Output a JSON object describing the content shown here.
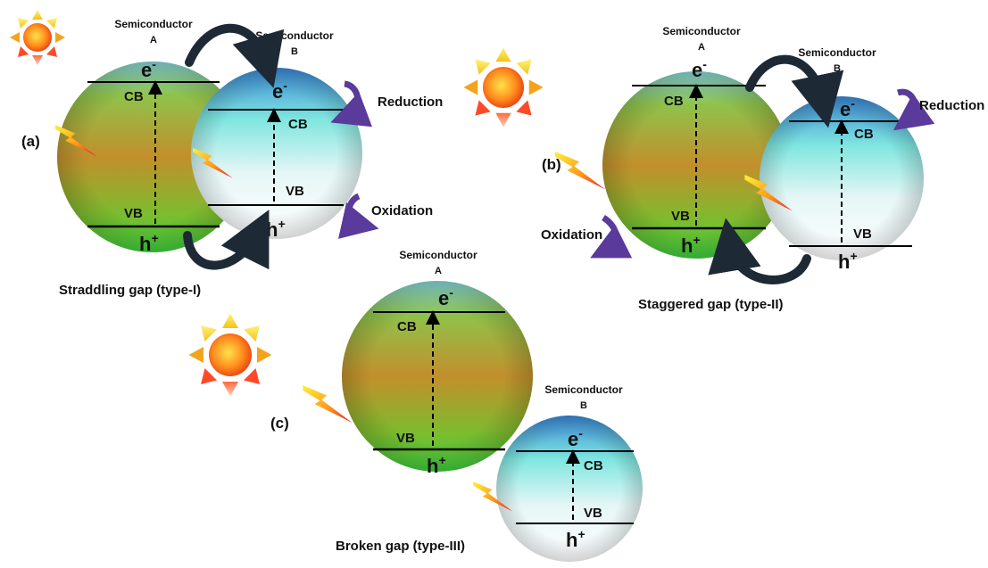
{
  "panels": {
    "a": {
      "label": "(a)",
      "caption": "Straddling gap (type-I)",
      "semA": {
        "line1": "Semiconductor",
        "line2": "A"
      },
      "semB": {
        "line1": "Semiconductor",
        "line2": "B"
      },
      "A": {
        "e": "e",
        "e_sup": "-",
        "cb": "CB",
        "vb": "VB",
        "h": "h",
        "h_sup": "+"
      },
      "B": {
        "e": "e",
        "e_sup": "-",
        "cb": "CB",
        "vb": "VB",
        "h": "h",
        "h_sup": "+"
      },
      "reduction": "Reduction",
      "oxidation": "Oxidation"
    },
    "b": {
      "label": "(b)",
      "caption": "Staggered gap (type-II)",
      "semA": {
        "line1": "Semiconductor",
        "line2": "A"
      },
      "semB": {
        "line1": "Semiconductor",
        "line2": "B"
      },
      "A": {
        "e": "e",
        "e_sup": "-",
        "cb": "CB",
        "vb": "VB",
        "h": "h",
        "h_sup": "+"
      },
      "B": {
        "e": "e",
        "e_sup": "-",
        "cb": "CB",
        "vb": "VB",
        "h": "h",
        "h_sup": "+"
      },
      "reduction": "Reduction",
      "oxidation": "Oxidation"
    },
    "c": {
      "label": "(c)",
      "caption": "Broken gap (type-III)",
      "semA": {
        "line1": "Semiconductor",
        "line2": "A"
      },
      "semB": {
        "line1": "Semiconductor",
        "line2": "B"
      },
      "A": {
        "e": "e",
        "e_sup": "-",
        "cb": "CB",
        "vb": "VB",
        "h": "h",
        "h_sup": "+"
      },
      "B": {
        "e": "e",
        "e_sup": "-",
        "cb": "CB",
        "vb": "VB",
        "h": "h",
        "h_sup": "+"
      }
    }
  },
  "icons": [
    "sun-icon",
    "lightning-bolt-icon",
    "curved-arrow-icon"
  ],
  "colors": {
    "sphereA_top": "#7fd0d8",
    "sphereA_mid": "#c8962a",
    "sphereA_bottom": "#4cc83a",
    "sphereB_top": "#3f8fd8",
    "sphereB_mid": "#8fe8e0",
    "sphereB_bottom": "#ffffff",
    "process_arrow": "#5a3a9a",
    "transfer_arrow": "#1d2a36"
  }
}
